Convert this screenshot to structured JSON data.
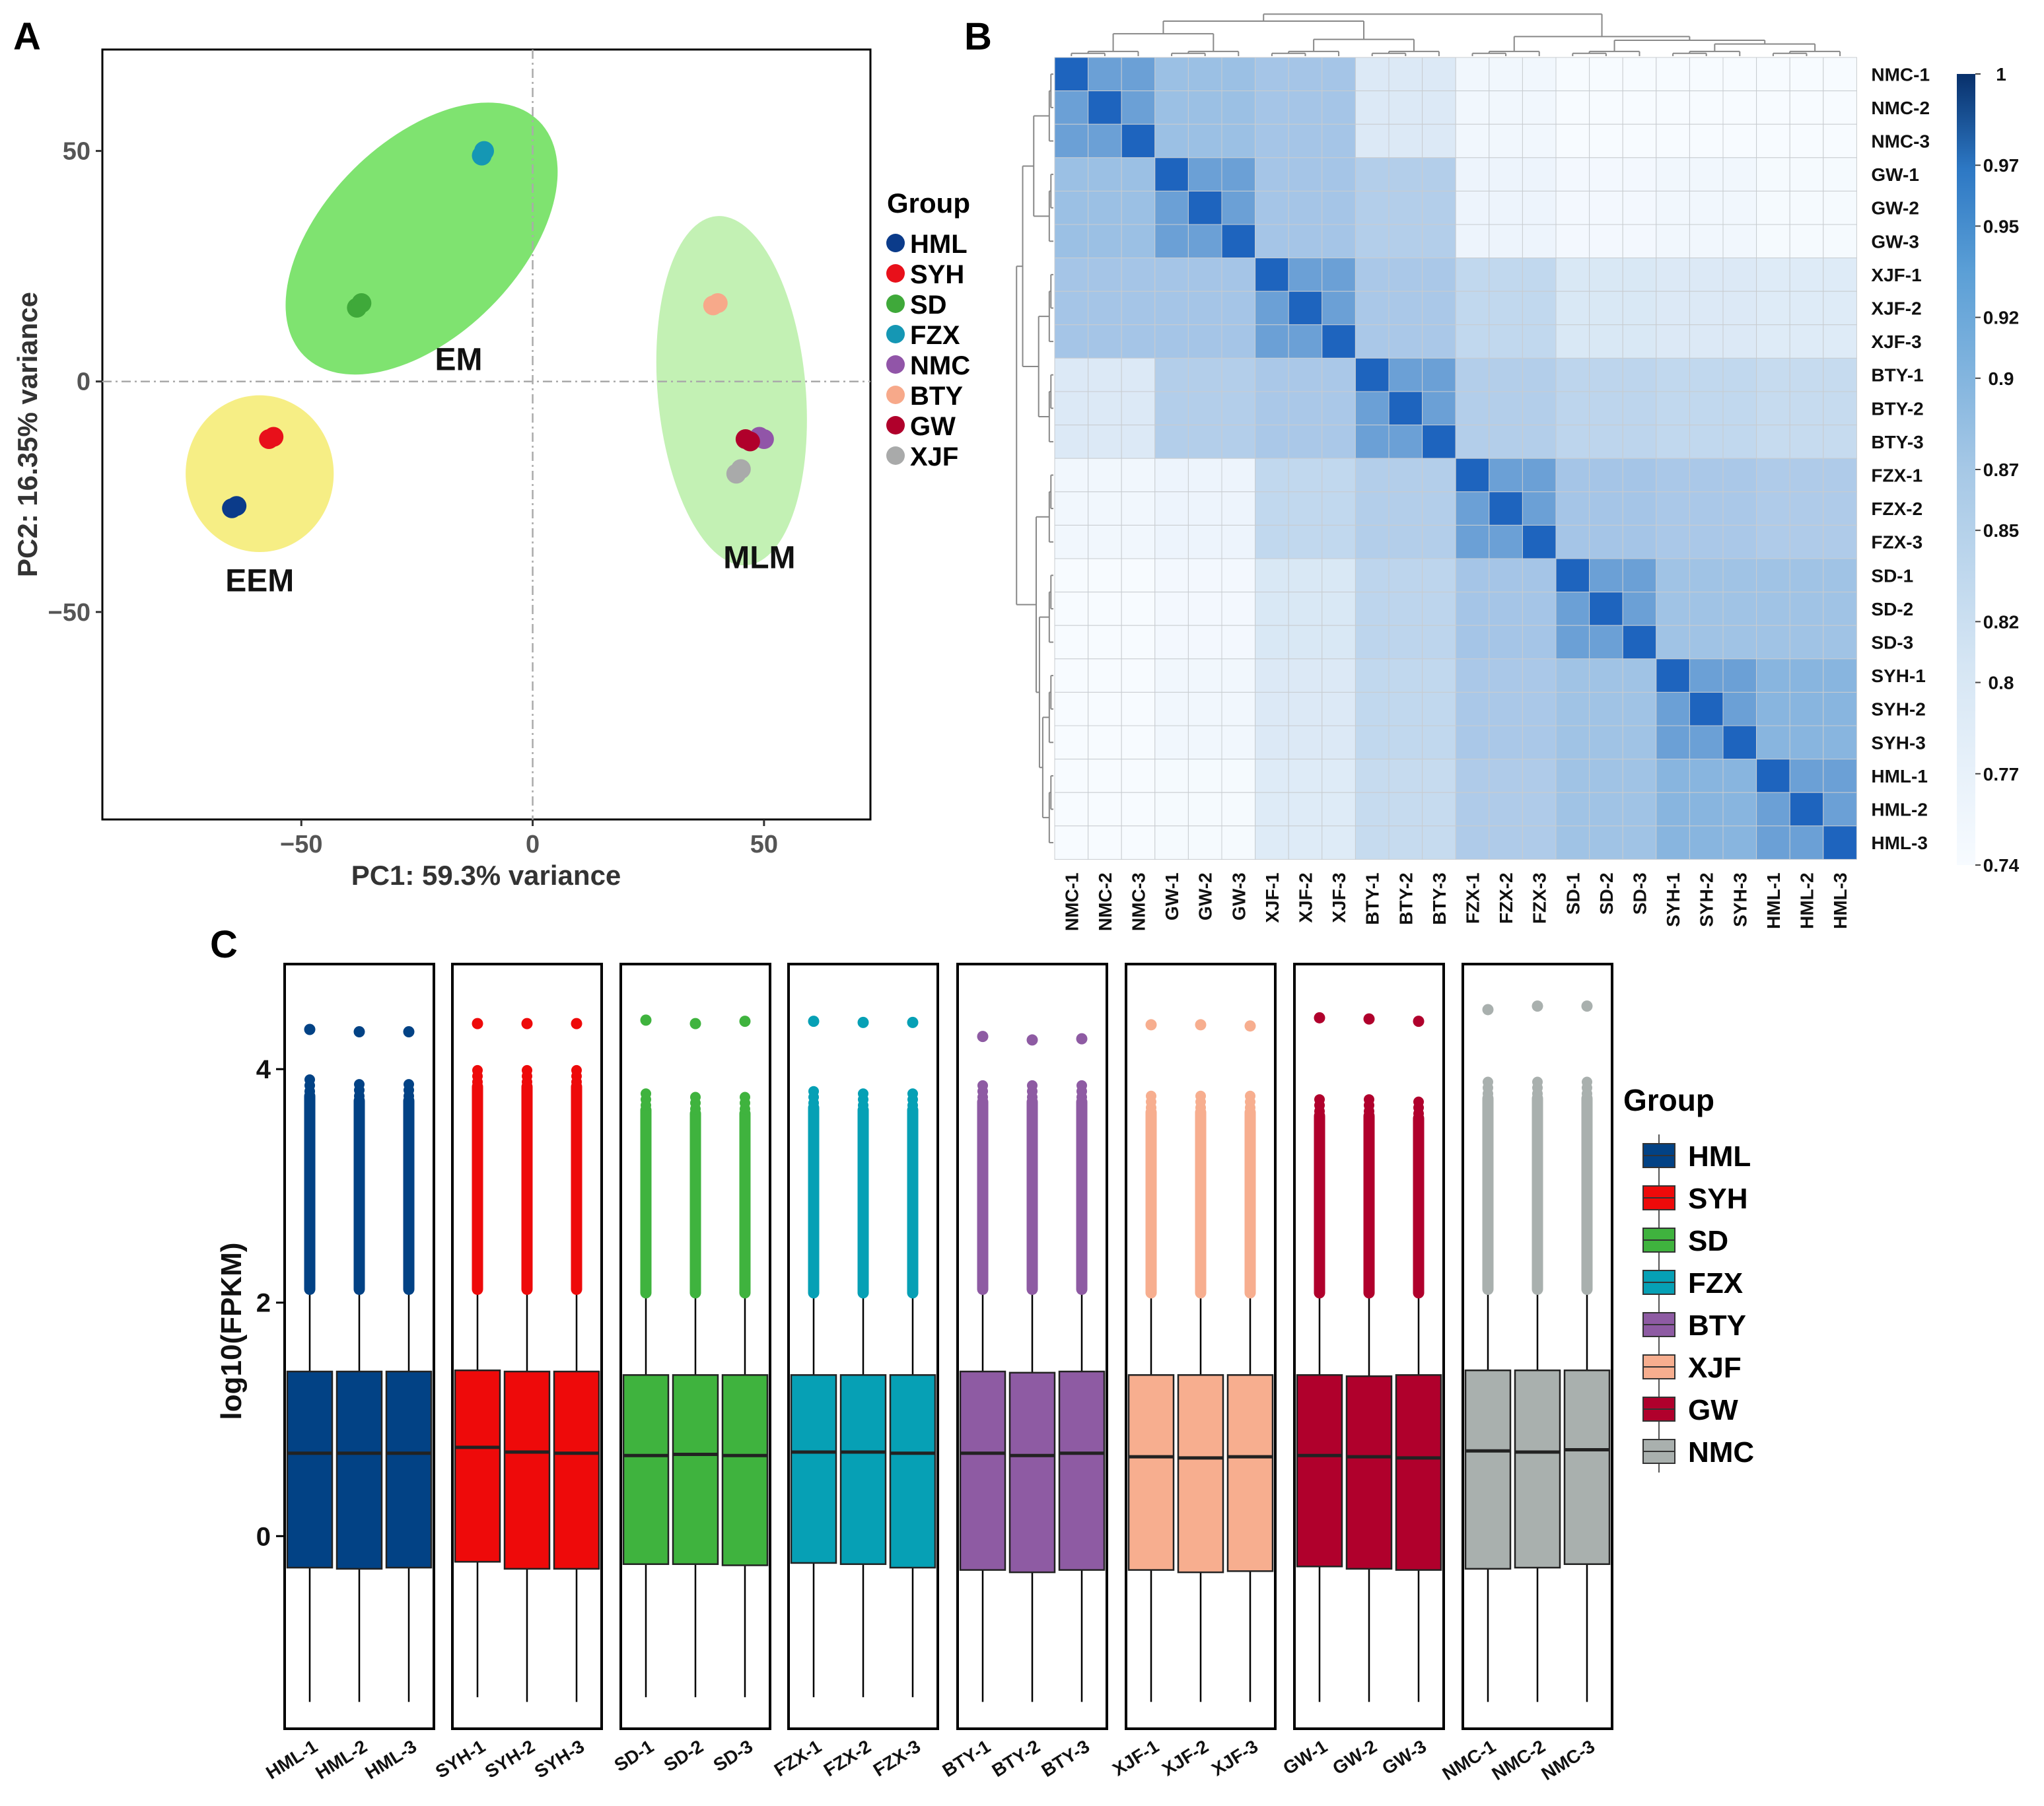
{
  "panels": {
    "a": "A",
    "b": "B",
    "c": "C"
  },
  "chart_data": [
    {
      "type": "scatter",
      "title": "",
      "xlabel": "PC1: 59.3% variance",
      "ylabel": "PC2: 16.35% variance",
      "xlim": [
        -93,
        73
      ],
      "ylim": [
        -95,
        72
      ],
      "xticks": [
        -50,
        0,
        50
      ],
      "yticks": [
        50,
        0,
        -50
      ],
      "tick_labels": {
        "x": [
          "−50",
          "0",
          "50"
        ],
        "y": [
          "50",
          "0",
          "−50"
        ]
      },
      "legend_title": "Group",
      "legend_position": "right",
      "series": [
        {
          "name": "HML",
          "color": "#0b3b8a",
          "points": [
            [
              -65,
              -27.5
            ],
            [
              -64,
              -27
            ]
          ]
        },
        {
          "name": "SYH",
          "color": "#e8101a",
          "points": [
            [
              -57,
              -12.5
            ],
            [
              -56,
              -12
            ]
          ]
        },
        {
          "name": "SD",
          "color": "#3fa93a",
          "points": [
            [
              -38,
              16
            ],
            [
              -37,
              17
            ]
          ]
        },
        {
          "name": "FZX",
          "color": "#1597b4",
          "points": [
            [
              -11,
              49
            ],
            [
              -10.5,
              50
            ]
          ]
        },
        {
          "name": "NMC",
          "color": "#9155a8",
          "points": [
            [
              49,
              -12
            ],
            [
              50,
              -12.5
            ]
          ]
        },
        {
          "name": "BTY",
          "color": "#f7a98a",
          "points": [
            [
              39,
              16.5
            ],
            [
              40,
              17
            ]
          ]
        },
        {
          "name": "GW",
          "color": "#b0002b",
          "points": [
            [
              46,
              -12.5
            ],
            [
              47,
              -13
            ]
          ]
        },
        {
          "name": "XJF",
          "color": "#a9aaaa",
          "points": [
            [
              44,
              -20
            ],
            [
              45,
              -19
            ]
          ]
        }
      ],
      "clusters": [
        {
          "label": "EEM",
          "fill": "#f6ee85",
          "center": [
            -59,
            -20
          ],
          "radii": [
            16,
            17
          ],
          "rotation": 0
        },
        {
          "label": "EM",
          "fill": "#7fe370",
          "center": [
            -24,
            31
          ],
          "radii": [
            21,
            36
          ],
          "rotation": 45
        },
        {
          "label": "MLM",
          "fill": "#c3f1b4",
          "center": [
            43,
            -2
          ],
          "radii": [
            16,
            38
          ],
          "rotation": -5
        }
      ]
    },
    {
      "type": "heatmap",
      "row_labels": [
        "NMC-1",
        "NMC-2",
        "NMC-3",
        "GW-1",
        "GW-2",
        "GW-3",
        "XJF-1",
        "XJF-2",
        "XJF-3",
        "BTY-1",
        "BTY-2",
        "BTY-3",
        "FZX-1",
        "FZX-2",
        "FZX-3",
        "SD-1",
        "SD-2",
        "SD-3",
        "SYH-1",
        "SYH-2",
        "SYH-3",
        "HML-1",
        "HML-2",
        "HML-3"
      ],
      "col_labels": [
        "NMC-1",
        "NMC-2",
        "NMC-3",
        "GW-1",
        "GW-2",
        "GW-3",
        "XJF-1",
        "XJF-2",
        "XJF-3",
        "BTY-1",
        "BTY-2",
        "BTY-3",
        "FZX-1",
        "FZX-2",
        "FZX-3",
        "SD-1",
        "SD-2",
        "SD-3",
        "SYH-1",
        "SYH-2",
        "SYH-3",
        "HML-1",
        "HML-2",
        "HML-3"
      ],
      "groups": [
        "NMC",
        "GW",
        "XJF",
        "BTY",
        "FZX",
        "SD",
        "SYH",
        "HML"
      ],
      "diagonal_value": 1.0,
      "within_group_value": 0.945,
      "group_correlation": [
        [
          0.95,
          0.895,
          0.885,
          0.805,
          0.755,
          0.74,
          0.74,
          0.74
        ],
        [
          0.895,
          0.95,
          0.885,
          0.87,
          0.765,
          0.75,
          0.755,
          0.745
        ],
        [
          0.885,
          0.885,
          0.95,
          0.88,
          0.855,
          0.81,
          0.805,
          0.8
        ],
        [
          0.805,
          0.87,
          0.88,
          0.95,
          0.87,
          0.86,
          0.855,
          0.85
        ],
        [
          0.755,
          0.765,
          0.855,
          0.87,
          0.95,
          0.885,
          0.88,
          0.875
        ],
        [
          0.74,
          0.75,
          0.81,
          0.86,
          0.885,
          0.95,
          0.89,
          0.89
        ],
        [
          0.74,
          0.755,
          0.805,
          0.855,
          0.88,
          0.89,
          0.95,
          0.915
        ],
        [
          0.74,
          0.745,
          0.8,
          0.85,
          0.875,
          0.89,
          0.915,
          0.95
        ]
      ],
      "colorbar": {
        "min": 0.74,
        "max": 1.0,
        "ticks": [
          "1",
          "0.97",
          "0.95",
          "0.92",
          "0.9",
          "0.87",
          "0.85",
          "0.82",
          "0.8",
          "0.77",
          "0.74"
        ],
        "tick_values": [
          1,
          0.97,
          0.95,
          0.92,
          0.9,
          0.87,
          0.85,
          0.82,
          0.8,
          0.77,
          0.74
        ]
      }
    },
    {
      "type": "box",
      "ylabel": "log10(FPKM)",
      "ylim": [
        -1.65,
        4.9
      ],
      "yticks": [
        0,
        2,
        4
      ],
      "legend_title": "Group",
      "legend_position": "right",
      "legend": [
        {
          "name": "HML",
          "color": "#024285"
        },
        {
          "name": "SYH",
          "color": "#ee0a0a"
        },
        {
          "name": "SD",
          "color": "#3fb33e"
        },
        {
          "name": "FZX",
          "color": "#06a0b5"
        },
        {
          "name": "BTY",
          "color": "#8e5ba3"
        },
        {
          "name": "XJF",
          "color": "#f7ae8f"
        },
        {
          "name": "GW",
          "color": "#b0002c"
        },
        {
          "name": "NMC",
          "color": "#a9b0ae"
        }
      ],
      "facets": [
        {
          "group": "HML",
          "color": "#024285",
          "samples": [
            {
              "label": "HML-1",
              "q1": -0.27,
              "median": 0.71,
              "q3": 1.41,
              "lower": -1.42,
              "upper": 2.08,
              "outliers_top": 3.77,
              "max": 4.34
            },
            {
              "label": "HML-2",
              "q1": -0.28,
              "median": 0.71,
              "q3": 1.41,
              "lower": -1.42,
              "upper": 2.08,
              "outliers_top": 3.73,
              "max": 4.32
            },
            {
              "label": "HML-3",
              "q1": -0.27,
              "median": 0.71,
              "q3": 1.41,
              "lower": -1.42,
              "upper": 2.08,
              "outliers_top": 3.73,
              "max": 4.32
            }
          ]
        },
        {
          "group": "SYH",
          "color": "#ee0a0a",
          "samples": [
            {
              "label": "SYH-1",
              "q1": -0.22,
              "median": 0.76,
              "q3": 1.42,
              "lower": -1.38,
              "upper": 2.08,
              "outliers_top": 3.85,
              "max": 4.39
            },
            {
              "label": "SYH-2",
              "q1": -0.28,
              "median": 0.72,
              "q3": 1.41,
              "lower": -1.42,
              "upper": 2.08,
              "outliers_top": 3.85,
              "max": 4.39
            },
            {
              "label": "SYH-3",
              "q1": -0.28,
              "median": 0.71,
              "q3": 1.41,
              "lower": -1.42,
              "upper": 2.08,
              "outliers_top": 3.85,
              "max": 4.39
            }
          ]
        },
        {
          "group": "SD",
          "color": "#3fb33e",
          "samples": [
            {
              "label": "SD-1",
              "q1": -0.24,
              "median": 0.69,
              "q3": 1.38,
              "lower": -1.38,
              "upper": 2.05,
              "outliers_top": 3.65,
              "max": 4.42
            },
            {
              "label": "SD-2",
              "q1": -0.24,
              "median": 0.7,
              "q3": 1.38,
              "lower": -1.38,
              "upper": 2.05,
              "outliers_top": 3.62,
              "max": 4.39
            },
            {
              "label": "SD-3",
              "q1": -0.25,
              "median": 0.69,
              "q3": 1.38,
              "lower": -1.38,
              "upper": 2.05,
              "outliers_top": 3.62,
              "max": 4.41
            }
          ]
        },
        {
          "group": "FZX",
          "color": "#06a0b5",
          "samples": [
            {
              "label": "FZX-1",
              "q1": -0.23,
              "median": 0.72,
              "q3": 1.38,
              "lower": -1.38,
              "upper": 2.05,
              "outliers_top": 3.67,
              "max": 4.41
            },
            {
              "label": "FZX-2",
              "q1": -0.24,
              "median": 0.72,
              "q3": 1.38,
              "lower": -1.38,
              "upper": 2.05,
              "outliers_top": 3.65,
              "max": 4.4
            },
            {
              "label": "FZX-3",
              "q1": -0.27,
              "median": 0.71,
              "q3": 1.38,
              "lower": -1.38,
              "upper": 2.05,
              "outliers_top": 3.65,
              "max": 4.4
            }
          ]
        },
        {
          "group": "BTY",
          "color": "#8e5ba3",
          "samples": [
            {
              "label": "BTY-1",
              "q1": -0.29,
              "median": 0.71,
              "q3": 1.41,
              "lower": -1.42,
              "upper": 2.08,
              "outliers_top": 3.72,
              "max": 4.28
            },
            {
              "label": "BTY-2",
              "q1": -0.31,
              "median": 0.69,
              "q3": 1.4,
              "lower": -1.42,
              "upper": 2.08,
              "outliers_top": 3.72,
              "max": 4.25
            },
            {
              "label": "BTY-3",
              "q1": -0.29,
              "median": 0.71,
              "q3": 1.41,
              "lower": -1.42,
              "upper": 2.08,
              "outliers_top": 3.72,
              "max": 4.26
            }
          ]
        },
        {
          "group": "XJF",
          "color": "#f7ae8f",
          "samples": [
            {
              "label": "XJF-1",
              "q1": -0.29,
              "median": 0.68,
              "q3": 1.38,
              "lower": -1.42,
              "upper": 2.05,
              "outliers_top": 3.63,
              "max": 4.38
            },
            {
              "label": "XJF-2",
              "q1": -0.31,
              "median": 0.67,
              "q3": 1.38,
              "lower": -1.42,
              "upper": 2.05,
              "outliers_top": 3.63,
              "max": 4.38
            },
            {
              "label": "XJF-3",
              "q1": -0.3,
              "median": 0.68,
              "q3": 1.38,
              "lower": -1.42,
              "upper": 2.05,
              "outliers_top": 3.63,
              "max": 4.37
            }
          ]
        },
        {
          "group": "GW",
          "color": "#b0002c",
          "samples": [
            {
              "label": "GW-1",
              "q1": -0.26,
              "median": 0.69,
              "q3": 1.38,
              "lower": -1.42,
              "upper": 2.05,
              "outliers_top": 3.6,
              "max": 4.44
            },
            {
              "label": "GW-2",
              "q1": -0.28,
              "median": 0.68,
              "q3": 1.37,
              "lower": -1.42,
              "upper": 2.05,
              "outliers_top": 3.6,
              "max": 4.43
            },
            {
              "label": "GW-3",
              "q1": -0.29,
              "median": 0.67,
              "q3": 1.38,
              "lower": -1.42,
              "upper": 2.05,
              "outliers_top": 3.58,
              "max": 4.41
            }
          ]
        },
        {
          "group": "NMC",
          "color": "#a9b0ae",
          "samples": [
            {
              "label": "NMC-1",
              "q1": -0.28,
              "median": 0.73,
              "q3": 1.42,
              "lower": -1.42,
              "upper": 2.08,
              "outliers_top": 3.75,
              "max": 4.51
            },
            {
              "label": "NMC-2",
              "q1": -0.27,
              "median": 0.72,
              "q3": 1.42,
              "lower": -1.42,
              "upper": 2.08,
              "outliers_top": 3.75,
              "max": 4.54
            },
            {
              "label": "NMC-3",
              "q1": -0.24,
              "median": 0.74,
              "q3": 1.42,
              "lower": -1.42,
              "upper": 2.08,
              "outliers_top": 3.75,
              "max": 4.54
            }
          ]
        }
      ]
    }
  ]
}
